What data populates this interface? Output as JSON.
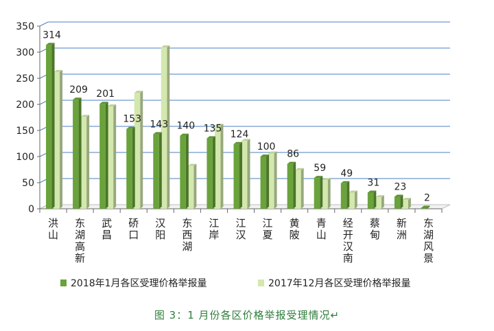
{
  "chart_data": {
    "type": "bar",
    "title": "",
    "xlabel": "",
    "ylabel": "",
    "ylim": [
      0,
      350
    ],
    "yticks": [
      "0",
      "50",
      "100",
      "150",
      "200",
      "250",
      "300",
      "350"
    ],
    "grid": true,
    "legend_position": "bottom",
    "categories": [
      "洪山",
      "东湖高新",
      "武昌",
      "硚口",
      "汉阳",
      "东西湖",
      "江岸",
      "江汉",
      "江夏",
      "黄陂",
      "青山",
      "经开汉南",
      "蔡甸",
      "新洲",
      "东湖风景"
    ],
    "series": [
      {
        "name": "2018年1月各区受理价格举报量",
        "values": [
          314,
          209,
          201,
          153,
          143,
          140,
          135,
          124,
          100,
          86,
          59,
          49,
          31,
          23,
          2
        ],
        "color": "#6aa23b",
        "labels_shown": true
      },
      {
        "name": "2017年12月各区受理价格举报量",
        "values": [
          262,
          176,
          196,
          222,
          309,
          82,
          159,
          130,
          106,
          74,
          55,
          31,
          22,
          17,
          0
        ],
        "color": "#d3e8ad",
        "labels_shown": false
      }
    ]
  },
  "caption": "图 3：1 月份各区价格举报受理情况↵",
  "colors": {
    "grid": "#4a7fc0",
    "axis": "#666666",
    "caption": "#2f7d3c"
  }
}
